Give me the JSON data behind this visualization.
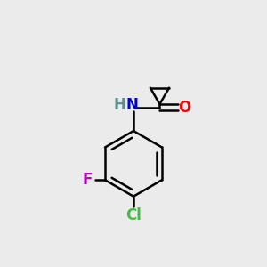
{
  "background_color": "#ebebeb",
  "bond_color": "#000000",
  "N_color": "#0000cc",
  "H_color": "#5a9090",
  "O_color": "#ff0000",
  "F_color": "#bb00bb",
  "Cl_color": "#44bb44",
  "line_width": 1.8,
  "fig_size": [
    3.0,
    3.0
  ],
  "dpi": 100,
  "xlim": [
    0,
    10
  ],
  "ylim": [
    0,
    10
  ]
}
